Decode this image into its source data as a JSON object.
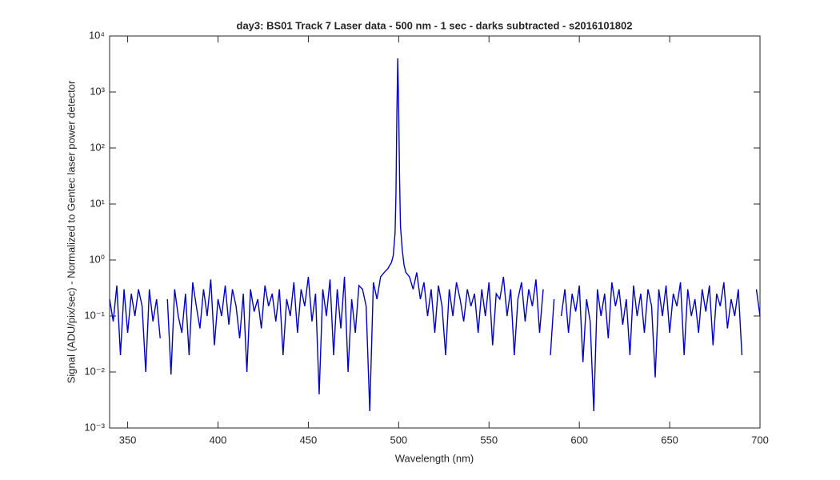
{
  "chart_data": {
    "type": "line",
    "title": "day3: BS01  Track 7 Laser data - 500 nm - 1 sec - darks subtracted - s2016101802",
    "x_label": "Wavelength (nm)",
    "y_label": "Signal (ADU/pix/sec) - Normalized to Gentec laser power detector",
    "xlim": [
      340,
      700
    ],
    "xticks": [
      350,
      400,
      450,
      500,
      550,
      600,
      650,
      700
    ],
    "ylim": [
      0.001,
      10000
    ],
    "y_scale": "log",
    "grid": false,
    "yticks": [
      {
        "value": 0.001,
        "label": "10⁻³"
      },
      {
        "value": 0.01,
        "label": "10⁻²"
      },
      {
        "value": 0.1,
        "label": "10⁻¹"
      },
      {
        "value": 1,
        "label": "10⁰"
      },
      {
        "value": 10,
        "label": "10¹"
      },
      {
        "value": 100,
        "label": "10²"
      },
      {
        "value": 1000,
        "label": "10³"
      },
      {
        "value": 10000,
        "label": "10⁴"
      }
    ],
    "x": [
      340,
      342,
      344,
      346,
      348,
      350,
      352,
      354,
      356,
      358,
      360,
      362,
      364,
      366,
      368,
      370,
      372,
      374,
      376,
      378,
      380,
      382,
      384,
      386,
      388,
      390,
      392,
      394,
      396,
      398,
      400,
      402,
      404,
      406,
      408,
      410,
      412,
      414,
      416,
      418,
      420,
      422,
      424,
      426,
      428,
      430,
      432,
      434,
      436,
      438,
      440,
      442,
      444,
      446,
      448,
      450,
      452,
      454,
      456,
      458,
      460,
      462,
      464,
      466,
      468,
      470,
      472,
      474,
      476,
      478,
      480,
      482,
      484,
      486,
      488,
      490,
      492,
      494,
      495,
      496,
      497,
      498,
      498.5,
      499,
      499.5,
      500,
      500.5,
      501,
      502,
      503,
      504,
      506,
      508,
      510,
      512,
      514,
      516,
      518,
      520,
      522,
      524,
      526,
      528,
      530,
      532,
      534,
      536,
      538,
      540,
      542,
      544,
      546,
      548,
      550,
      552,
      554,
      556,
      558,
      560,
      562,
      564,
      566,
      568,
      570,
      572,
      574,
      576,
      578,
      580,
      582,
      584,
      586,
      588,
      590,
      592,
      594,
      596,
      598,
      600,
      602,
      604,
      606,
      608,
      610,
      612,
      614,
      616,
      618,
      620,
      622,
      624,
      626,
      628,
      630,
      632,
      634,
      636,
      638,
      640,
      642,
      644,
      646,
      648,
      650,
      652,
      654,
      656,
      658,
      660,
      662,
      664,
      666,
      668,
      670,
      672,
      674,
      676,
      678,
      680,
      682,
      684,
      686,
      688,
      690,
      692,
      694,
      696,
      698,
      700
    ],
    "series": [
      {
        "color": "#0000cc",
        "values": [
          0.2,
          0.08,
          0.35,
          0.02,
          0.3,
          0.05,
          0.25,
          0.1,
          0.3,
          0.15,
          0.01,
          0.3,
          0.08,
          0.2,
          0.04,
          null,
          0.2,
          0.009,
          0.3,
          0.1,
          0.05,
          0.25,
          0.02,
          0.4,
          0.15,
          0.06,
          0.3,
          0.1,
          0.45,
          0.03,
          0.2,
          0.1,
          0.35,
          0.07,
          0.3,
          0.15,
          0.04,
          0.25,
          0.01,
          0.3,
          0.12,
          0.2,
          0.06,
          0.35,
          0.15,
          0.25,
          0.08,
          0.3,
          0.02,
          0.2,
          0.1,
          0.4,
          0.05,
          0.3,
          0.15,
          0.5,
          0.08,
          0.25,
          0.004,
          0.3,
          0.1,
          0.45,
          0.02,
          0.3,
          0.06,
          0.5,
          0.01,
          0.2,
          0.05,
          0.35,
          0.3,
          0.15,
          0.002,
          0.4,
          0.2,
          0.5,
          0.6,
          0.7,
          0.8,
          0.9,
          1.2,
          3,
          15,
          400,
          4000,
          500,
          30,
          4,
          1.5,
          0.8,
          0.6,
          0.5,
          0.3,
          0.6,
          0.2,
          0.4,
          0.1,
          0.3,
          0.05,
          0.35,
          0.15,
          0.02,
          0.3,
          0.1,
          0.4,
          0.2,
          0.08,
          0.3,
          0.15,
          0.25,
          0.05,
          0.3,
          0.1,
          0.4,
          0.03,
          0.25,
          0.2,
          0.5,
          0.1,
          0.3,
          0.02,
          0.2,
          0.4,
          0.08,
          0.3,
          0.15,
          0.45,
          0.05,
          0.3,
          null,
          0.02,
          0.2,
          null,
          0.1,
          0.3,
          0.05,
          0.25,
          0.12,
          0.35,
          0.015,
          0.2,
          0.08,
          0.002,
          0.3,
          0.1,
          0.25,
          0.04,
          0.4,
          0.15,
          0.3,
          0.07,
          0.2,
          0.02,
          0.35,
          0.1,
          0.25,
          0.05,
          0.3,
          0.15,
          0.008,
          0.3,
          0.1,
          0.35,
          0.05,
          0.25,
          0.15,
          0.4,
          0.02,
          0.3,
          0.1,
          0.2,
          0.05,
          0.3,
          0.12,
          0.35,
          0.03,
          0.25,
          0.15,
          0.4,
          0.06,
          0.2,
          0.1,
          0.3,
          0.02,
          null,
          null,
          null,
          0.3,
          0.1
        ]
      }
    ]
  }
}
